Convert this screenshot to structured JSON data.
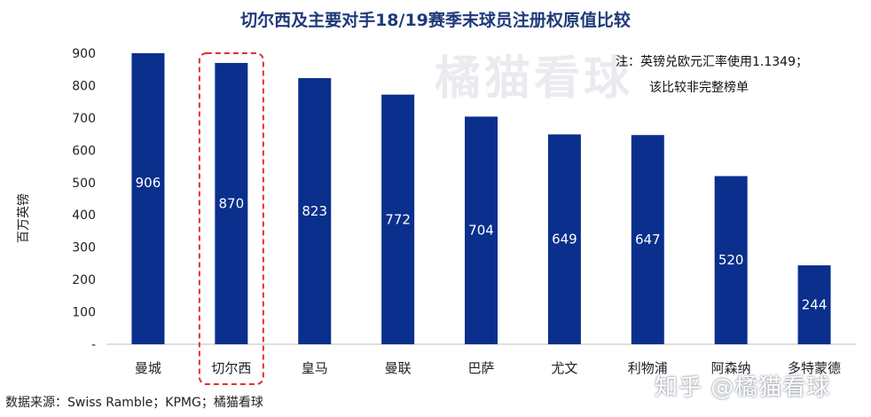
{
  "chart_data": {
    "type": "bar",
    "title": "切尔西及主要对手18/19赛季末球员注册权原值比较",
    "ylabel": "百万英镑",
    "ylim": [
      0,
      900
    ],
    "yticks": [
      "-",
      "100",
      "200",
      "300",
      "400",
      "500",
      "600",
      "700",
      "800",
      "900"
    ],
    "ytick_values": [
      0,
      100,
      200,
      300,
      400,
      500,
      600,
      700,
      800,
      900
    ],
    "categories": [
      "曼城",
      "切尔西",
      "皇马",
      "曼联",
      "巴萨",
      "尤文",
      "利物浦",
      "阿森纳",
      "多特蒙德"
    ],
    "values": [
      906,
      870,
      823,
      772,
      704,
      649,
      647,
      520,
      244
    ],
    "data_labels": [
      "906",
      "870",
      "823",
      "772",
      "704",
      "649",
      "647",
      "520",
      "244"
    ],
    "highlight_category": "切尔西",
    "bar_color": "#0a2f8c",
    "highlight_color": "#e03030",
    "grid": false,
    "legend": false
  },
  "note": {
    "line1": "注：英镑兑欧元汇率使用1.1349；",
    "line2": "该比较非完整榜单"
  },
  "source": "数据来源：Swiss Ramble；KPMG；橘猫看球",
  "watermark": "橘猫看球",
  "zhihu_watermark": "知乎 @橘猫看球"
}
